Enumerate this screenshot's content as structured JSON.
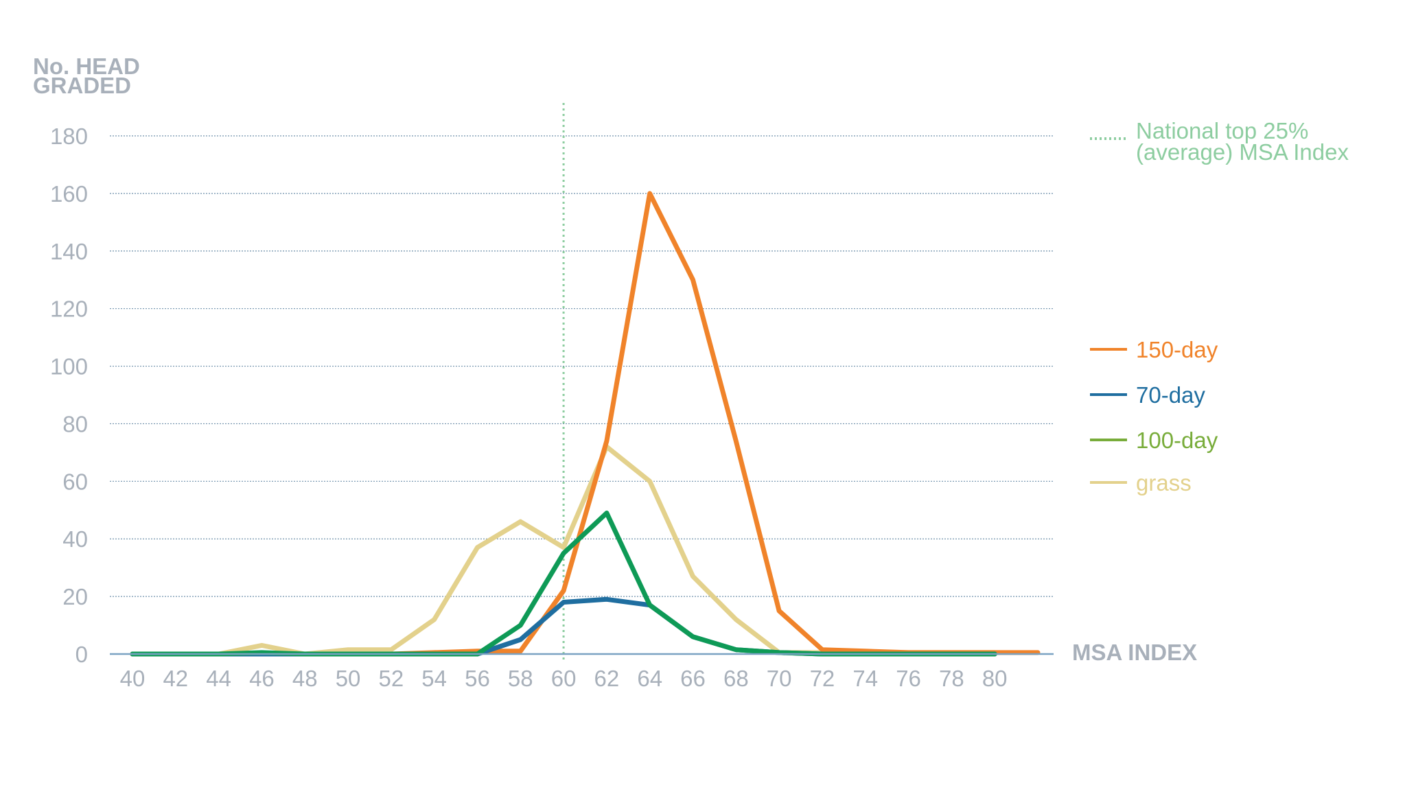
{
  "chart_data": {
    "type": "line",
    "ylabel": [
      "No. HEAD",
      "GRADED"
    ],
    "xlabel": "MSA INDEX",
    "x_ticks": [
      "40",
      "42",
      "44",
      "46",
      "48",
      "50",
      "52",
      "54",
      "56",
      "58",
      "60",
      "62",
      "64",
      "66",
      "68",
      "70",
      "72",
      "74",
      "76",
      "78",
      "80"
    ],
    "y_ticks": [
      "0",
      "20",
      "40",
      "60",
      "80",
      "100",
      "120",
      "140",
      "160",
      "180"
    ],
    "xlim": [
      40,
      82
    ],
    "ylim": [
      0,
      180
    ],
    "grid": "horizontal dotted",
    "legend_position": "right",
    "reference_line": {
      "x": 60,
      "label_lines": [
        "National top 25%",
        "(average) MSA Index"
      ],
      "color": "#8dcda0"
    },
    "series": [
      {
        "name": "150-day",
        "color": "#f0832a",
        "x": [
          40,
          42,
          44,
          46,
          48,
          50,
          52,
          54,
          56,
          58,
          60,
          62,
          64,
          66,
          68,
          70,
          72,
          74,
          76,
          78,
          80,
          82
        ],
        "y": [
          0,
          0,
          0,
          0,
          0,
          0,
          0,
          0.5,
          1,
          1,
          22,
          74,
          160,
          130,
          74,
          15,
          1.5,
          1,
          0.5,
          0.5,
          0.5,
          0.5
        ]
      },
      {
        "name": "70-day",
        "color": "#1f6ea0",
        "x": [
          40,
          42,
          44,
          46,
          48,
          50,
          52,
          54,
          56,
          58,
          60,
          62,
          64,
          66,
          68,
          70,
          72,
          74,
          76,
          78,
          80
        ],
        "y": [
          0,
          0,
          0,
          0,
          0,
          0,
          0,
          0,
          0,
          5,
          18,
          19,
          17,
          6,
          1.5,
          0.5,
          0,
          0,
          0,
          0,
          0
        ]
      },
      {
        "name": "100-day",
        "color": "#0e9a56",
        "legend_color": "#78ac3a",
        "x": [
          40,
          42,
          44,
          46,
          48,
          50,
          52,
          54,
          56,
          58,
          60,
          62,
          64,
          66,
          68,
          70,
          72,
          74,
          76,
          78,
          80
        ],
        "y": [
          0,
          0,
          0,
          0.5,
          0,
          0,
          0,
          0,
          0,
          10,
          35,
          49,
          17,
          6,
          1.5,
          0.5,
          0,
          0,
          0,
          0,
          0
        ]
      },
      {
        "name": "grass",
        "color": "#e3d18c",
        "x": [
          40,
          42,
          44,
          46,
          48,
          50,
          52,
          54,
          56,
          58,
          60,
          62,
          64,
          66,
          68,
          70,
          72,
          74,
          76,
          78,
          80
        ],
        "y": [
          0,
          0,
          0,
          3,
          0,
          1.5,
          1.5,
          12,
          37,
          46,
          37,
          72,
          60,
          27,
          12,
          0.5,
          0.5,
          0.5,
          0.5,
          0.5,
          0.5
        ]
      }
    ]
  },
  "colors": {
    "axis_text": "#a8b0ba",
    "grid": "#6f90ab",
    "baseline": "#7aa2c2"
  }
}
